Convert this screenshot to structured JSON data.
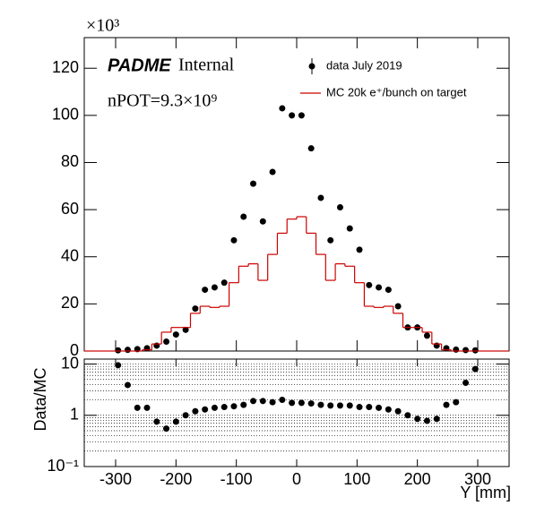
{
  "chart_data": [
    {
      "type": "step",
      "annotations": {
        "multiplier": "×10³",
        "brand": "PADME",
        "brand_suffix": "Internal",
        "npot": "nPOT=9.3×10⁹"
      },
      "x": [
        -344,
        -328,
        -312,
        -296,
        -280,
        -264,
        -248,
        -232,
        -216,
        -200,
        -184,
        -168,
        -152,
        -136,
        -120,
        -104,
        -88,
        -72,
        -56,
        -40,
        -24,
        -8,
        8,
        24,
        40,
        56,
        72,
        88,
        104,
        120,
        136,
        152,
        168,
        184,
        200,
        216,
        232,
        248,
        264,
        280,
        296,
        312,
        328,
        344
      ],
      "bin_width": 16,
      "series": [
        {
          "name": "data July 2019",
          "color": "#000000",
          "style": "points",
          "values": [
            null,
            null,
            null,
            0.3,
            0.5,
            0.8,
            1.2,
            2.3,
            4,
            7,
            9,
            18,
            26,
            27,
            29,
            47,
            57,
            71,
            55,
            76,
            103,
            100,
            100,
            86,
            65,
            47,
            61,
            52,
            43,
            28,
            27,
            26,
            19,
            10,
            10,
            6.5,
            2.3,
            1.2,
            0.6,
            0.4,
            0.3,
            null,
            null,
            null
          ]
        },
        {
          "name": "MC 20k e⁺/bunch on target",
          "color": "#cc0000",
          "style": "step",
          "values": [
            0,
            0,
            0,
            0,
            0,
            0,
            0.5,
            3,
            8,
            10,
            10,
            16,
            19,
            18.5,
            19,
            29,
            36,
            37,
            30,
            41,
            50,
            56,
            57,
            50,
            41,
            30,
            37,
            36,
            29,
            19,
            18.5,
            19,
            16,
            10,
            10,
            8,
            3,
            0.5,
            0,
            0,
            0,
            0,
            0,
            0
          ]
        }
      ],
      "xlim": [
        -352,
        352
      ],
      "ylim": [
        0,
        133
      ],
      "yticks": [
        0,
        20,
        40,
        60,
        80,
        100,
        120
      ],
      "legend": "top-right"
    },
    {
      "type": "scatter",
      "x_label": "Y [mm]",
      "y_label": "Data/MC",
      "x": [
        -296,
        -280,
        -264,
        -248,
        -232,
        -216,
        -200,
        -184,
        -168,
        -152,
        -136,
        -120,
        -104,
        -88,
        -72,
        -56,
        -40,
        -24,
        -8,
        8,
        24,
        40,
        56,
        72,
        88,
        104,
        120,
        136,
        152,
        168,
        184,
        200,
        216,
        232,
        248,
        264,
        280,
        296
      ],
      "values": [
        9.5,
        3.9,
        1.4,
        1.4,
        0.75,
        0.55,
        0.75,
        1.0,
        1.2,
        1.3,
        1.4,
        1.45,
        1.5,
        1.6,
        1.9,
        1.9,
        1.8,
        2.0,
        1.75,
        1.75,
        1.7,
        1.6,
        1.55,
        1.55,
        1.55,
        1.45,
        1.45,
        1.4,
        1.3,
        1.2,
        1.0,
        0.85,
        0.78,
        0.85,
        1.6,
        1.8,
        4.3,
        8
      ],
      "color": "#000000",
      "xlim": [
        -352,
        352
      ],
      "xticks": [
        -300,
        -200,
        -100,
        0,
        100,
        200,
        300
      ],
      "log_y": true,
      "ylim": [
        0.1,
        12.5
      ],
      "yticks": [
        {
          "value": 0.1,
          "label": "10⁻¹"
        },
        1,
        10
      ],
      "grid": true,
      "minor_yticks": [
        0.2,
        0.3,
        0.4,
        0.5,
        0.6,
        0.7,
        0.8,
        0.9,
        2,
        3,
        4,
        5,
        6,
        7,
        8,
        9
      ]
    }
  ]
}
